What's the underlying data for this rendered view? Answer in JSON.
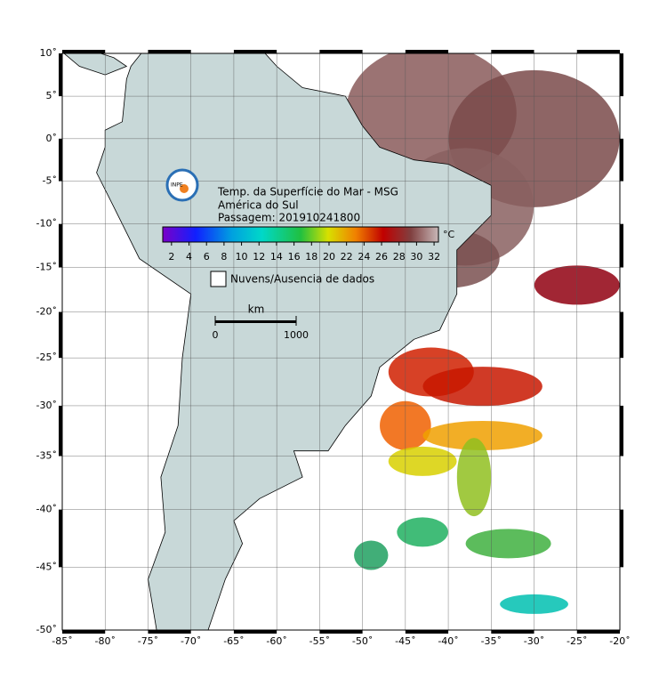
{
  "map": {
    "title_lines": [
      "Temp. da Superfície do Mar - MSG",
      "América do Sul",
      "Passagem: 201910241800"
    ],
    "colorbar": {
      "unit": "°C",
      "lim": [
        1,
        32.5
      ],
      "ticks": [
        2,
        4,
        6,
        8,
        10,
        12,
        14,
        16,
        18,
        20,
        22,
        24,
        26,
        28,
        30,
        32
      ]
    },
    "legend": "Nuvens/Ausencia de dados",
    "scale_bar": {
      "unit": "km",
      "ticks": [
        0,
        1000
      ]
    },
    "xlim": [
      -85,
      -20
    ],
    "ylim": [
      -50,
      10
    ],
    "xticks": [
      {
        "value": -85,
        "label": "-85˚"
      },
      {
        "value": -80,
        "label": "-80˚"
      },
      {
        "value": -75,
        "label": "-75˚"
      },
      {
        "value": -70,
        "label": "-70˚"
      },
      {
        "value": -65,
        "label": "-65˚"
      },
      {
        "value": -60,
        "label": "-60˚"
      },
      {
        "value": -55,
        "label": "-55˚"
      },
      {
        "value": -50,
        "label": "-50˚"
      },
      {
        "value": -45,
        "label": "-45˚"
      },
      {
        "value": -40,
        "label": "-40˚"
      },
      {
        "value": -35,
        "label": "-35˚"
      },
      {
        "value": -30,
        "label": "-30˚"
      },
      {
        "value": -25,
        "label": "-25˚"
      },
      {
        "value": -20,
        "label": "-20˚"
      }
    ],
    "yticks": [
      {
        "value": 10,
        "label": "10˚"
      },
      {
        "value": 5,
        "label": "5˚"
      },
      {
        "value": 0,
        "label": "0˚"
      },
      {
        "value": -5,
        "label": "-5˚"
      },
      {
        "value": -10,
        "label": "-10˚"
      },
      {
        "value": -15,
        "label": "-15˚"
      },
      {
        "value": -20,
        "label": "-20˚"
      },
      {
        "value": -25,
        "label": "-25˚"
      },
      {
        "value": -30,
        "label": "-30˚"
      },
      {
        "value": -35,
        "label": "-35˚"
      },
      {
        "value": -40,
        "label": "-40˚"
      },
      {
        "value": -45,
        "label": "-45˚"
      },
      {
        "value": -50,
        "label": "-50˚"
      }
    ]
  }
}
